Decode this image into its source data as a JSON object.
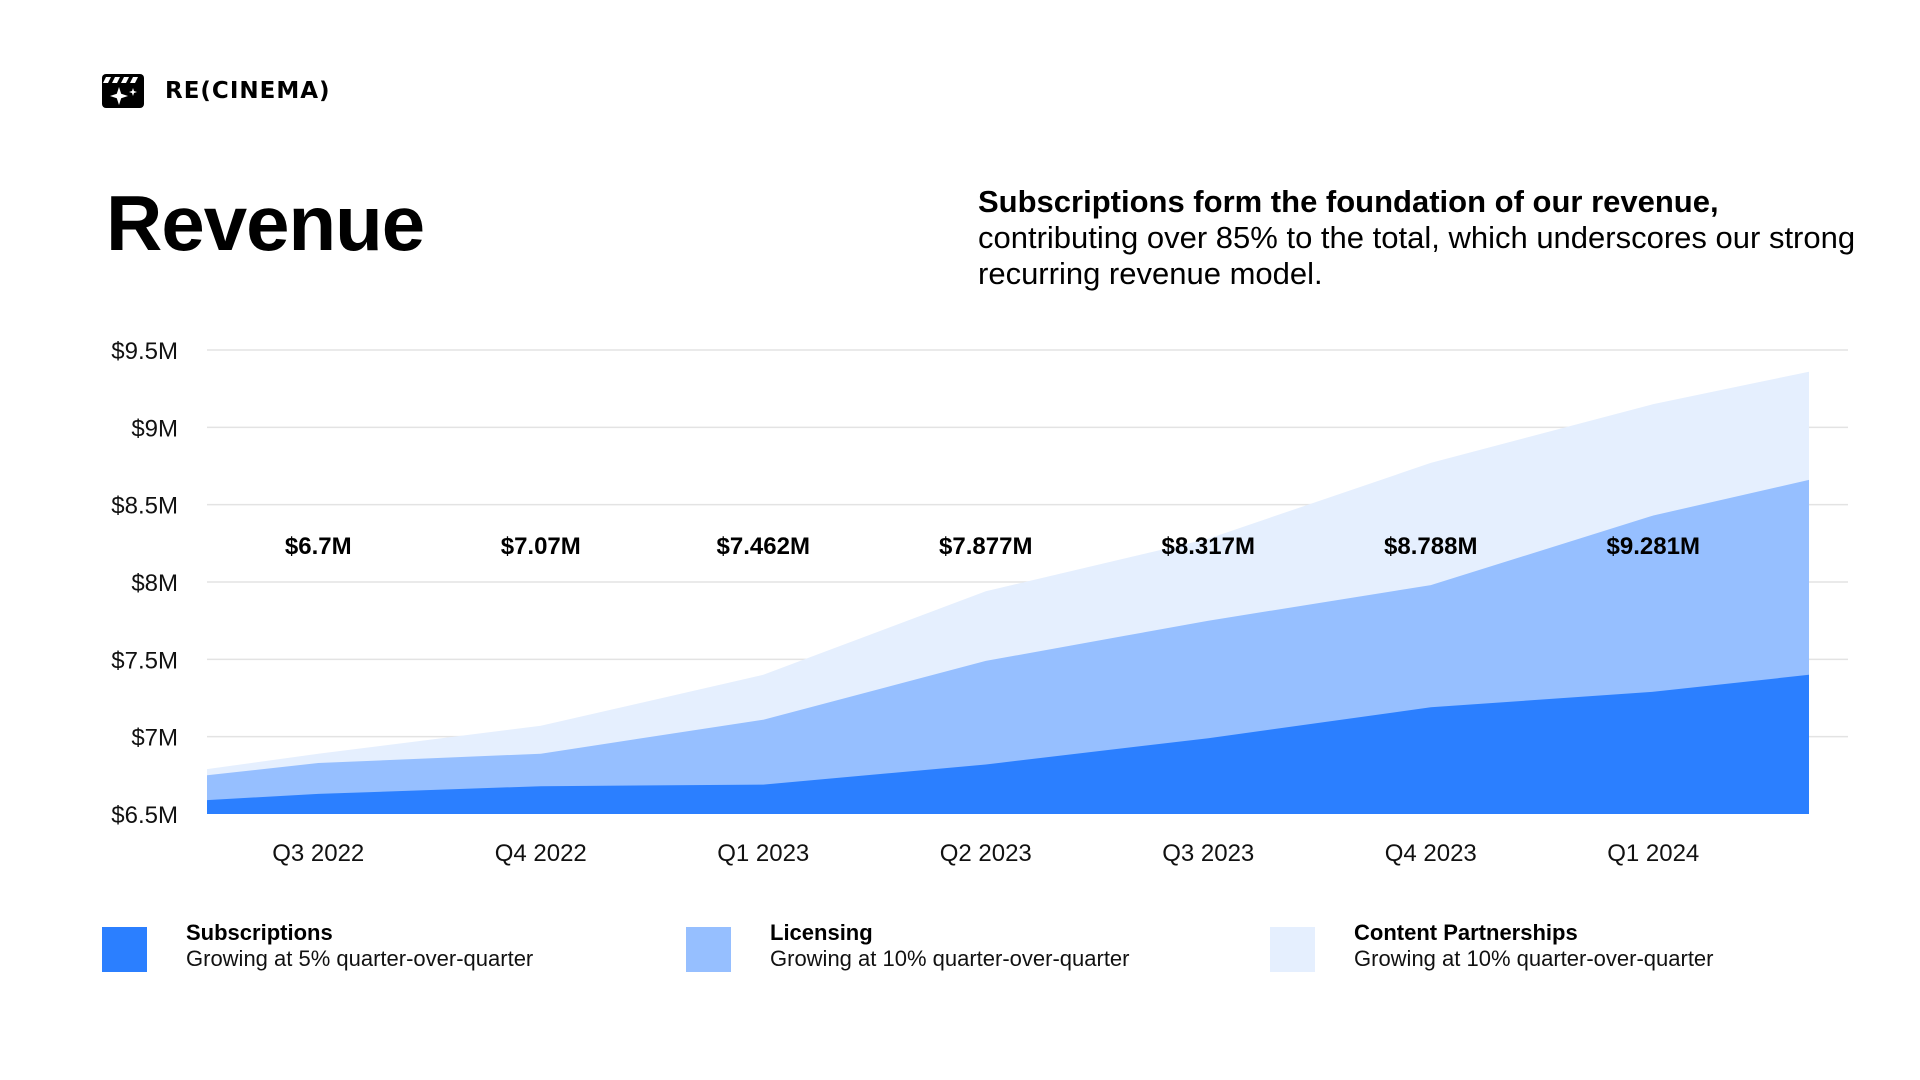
{
  "brand": {
    "name": "RE(CINEMA)",
    "logo_icon": "clapperboard-sparkle-icon"
  },
  "title": "Revenue",
  "lede": {
    "bold": "Subscriptions form the foundation of our revenue,",
    "rest": "contributing over 85% to the total, which underscores our strong recurring revenue model."
  },
  "chart_data": {
    "type": "area",
    "stacked": true,
    "categories": [
      "Q3 2022",
      "Q4 2022",
      "Q1 2023",
      "Q2 2023",
      "Q3 2023",
      "Q4 2023",
      "Q1 2024"
    ],
    "x": [
      0,
      0.5,
      1.5,
      2.5,
      3.5,
      4.5,
      5.5,
      6.5,
      7.2
    ],
    "series": [
      {
        "name": "Subscriptions",
        "color": "#2B7FFF",
        "values": [
          6.59,
          6.63,
          6.68,
          6.69,
          6.82,
          6.99,
          7.19,
          7.29,
          7.4
        ]
      },
      {
        "name": "Licensing",
        "color": "#96BFFF",
        "values": [
          6.75,
          6.83,
          6.89,
          7.11,
          7.49,
          7.75,
          7.98,
          8.43,
          8.66
        ]
      },
      {
        "name": "Content Partnerships",
        "color": "#E5EFFE",
        "values": [
          6.79,
          6.89,
          7.07,
          7.4,
          7.94,
          8.28,
          8.77,
          9.15,
          9.36
        ]
      }
    ],
    "data_labels": [
      "$6.7M",
      "$7.07M",
      "$7.462M",
      "$7.877M",
      "$8.317M",
      "$8.788M",
      "$9.281M"
    ],
    "y_ticks": [
      "$9.5M",
      "$9M",
      "$8.5M",
      "$8M",
      "$7.5M",
      "$7M",
      "$6.5M"
    ],
    "y_tick_values": [
      9.5,
      9.0,
      8.5,
      8.0,
      7.5,
      7.0,
      6.5
    ],
    "ylim": [
      6.5,
      9.5
    ],
    "grid": true,
    "legend_position": "bottom"
  },
  "legend": [
    {
      "name": "Subscriptions",
      "desc": "Growing at 5% quarter-over-quarter",
      "color": "#2B7FFF"
    },
    {
      "name": "Licensing",
      "desc": "Growing at 10% quarter-over-quarter",
      "color": "#96BFFF"
    },
    {
      "name": "Content Partnerships",
      "desc": "Growing at 10% quarter-over-quarter",
      "color": "#E5EFFE"
    }
  ]
}
